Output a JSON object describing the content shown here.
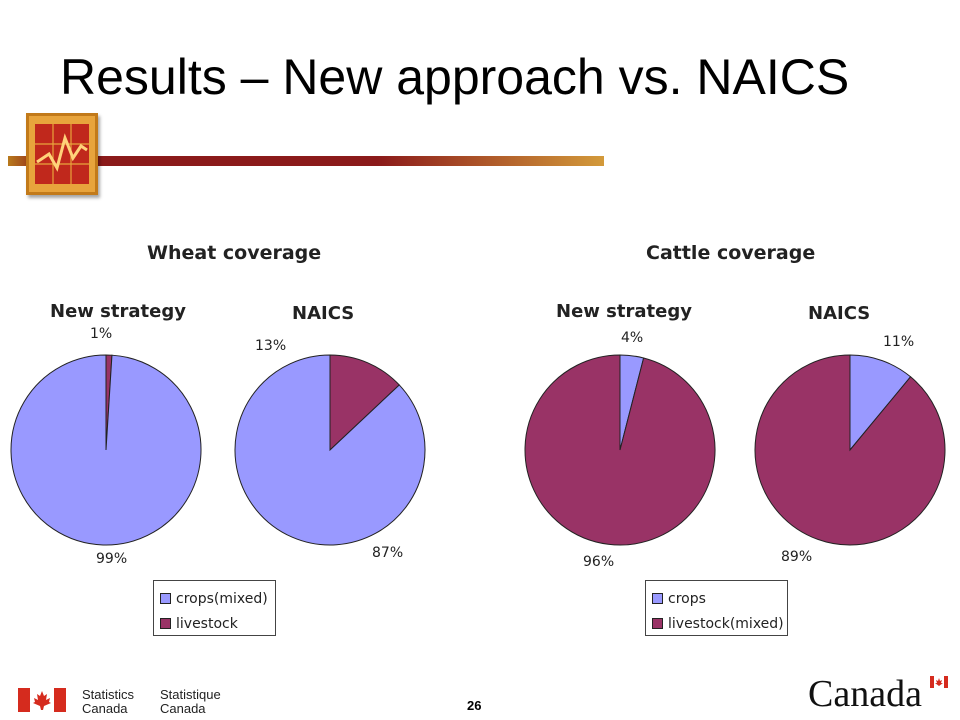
{
  "slide": {
    "title": "Results – New approach vs. NAICS",
    "page_number": "26",
    "footer": {
      "en_line1": "Statistics",
      "en_line2": "Canada",
      "fr_line1": "Statistique",
      "fr_line2": "Canada",
      "wordmark": "Canada"
    }
  },
  "colors": {
    "crops": "#9999ff",
    "livestock": "#993366",
    "title_bar": "#8b1a1a",
    "logo": "#e8a43c",
    "flag_red": "#d52b1e"
  },
  "chart_data": [
    {
      "type": "pie",
      "title": "Wheat coverage",
      "legend": [
        "crops(mixed)",
        "livestock"
      ],
      "legend_placement": "bottom",
      "pies": [
        {
          "title": "New strategy",
          "slices": [
            {
              "label": "crops(mixed)",
              "value": 99,
              "text": "99%"
            },
            {
              "label": "livestock",
              "value": 1,
              "text": "1%"
            }
          ]
        },
        {
          "title": "NAICS",
          "slices": [
            {
              "label": "crops(mixed)",
              "value": 87,
              "text": "87%"
            },
            {
              "label": "livestock",
              "value": 13,
              "text": "13%"
            }
          ]
        }
      ]
    },
    {
      "type": "pie",
      "title": "Cattle coverage",
      "legend": [
        "crops",
        "livestock(mixed)"
      ],
      "legend_placement": "bottom",
      "pies": [
        {
          "title": "New strategy",
          "slices": [
            {
              "label": "crops",
              "value": 4,
              "text": "4%"
            },
            {
              "label": "livestock(mixed)",
              "value": 96,
              "text": "96%"
            }
          ]
        },
        {
          "title": "NAICS",
          "slices": [
            {
              "label": "crops",
              "value": 11,
              "text": "11%"
            },
            {
              "label": "livestock(mixed)",
              "value": 89,
              "text": "89%"
            }
          ]
        }
      ]
    }
  ]
}
